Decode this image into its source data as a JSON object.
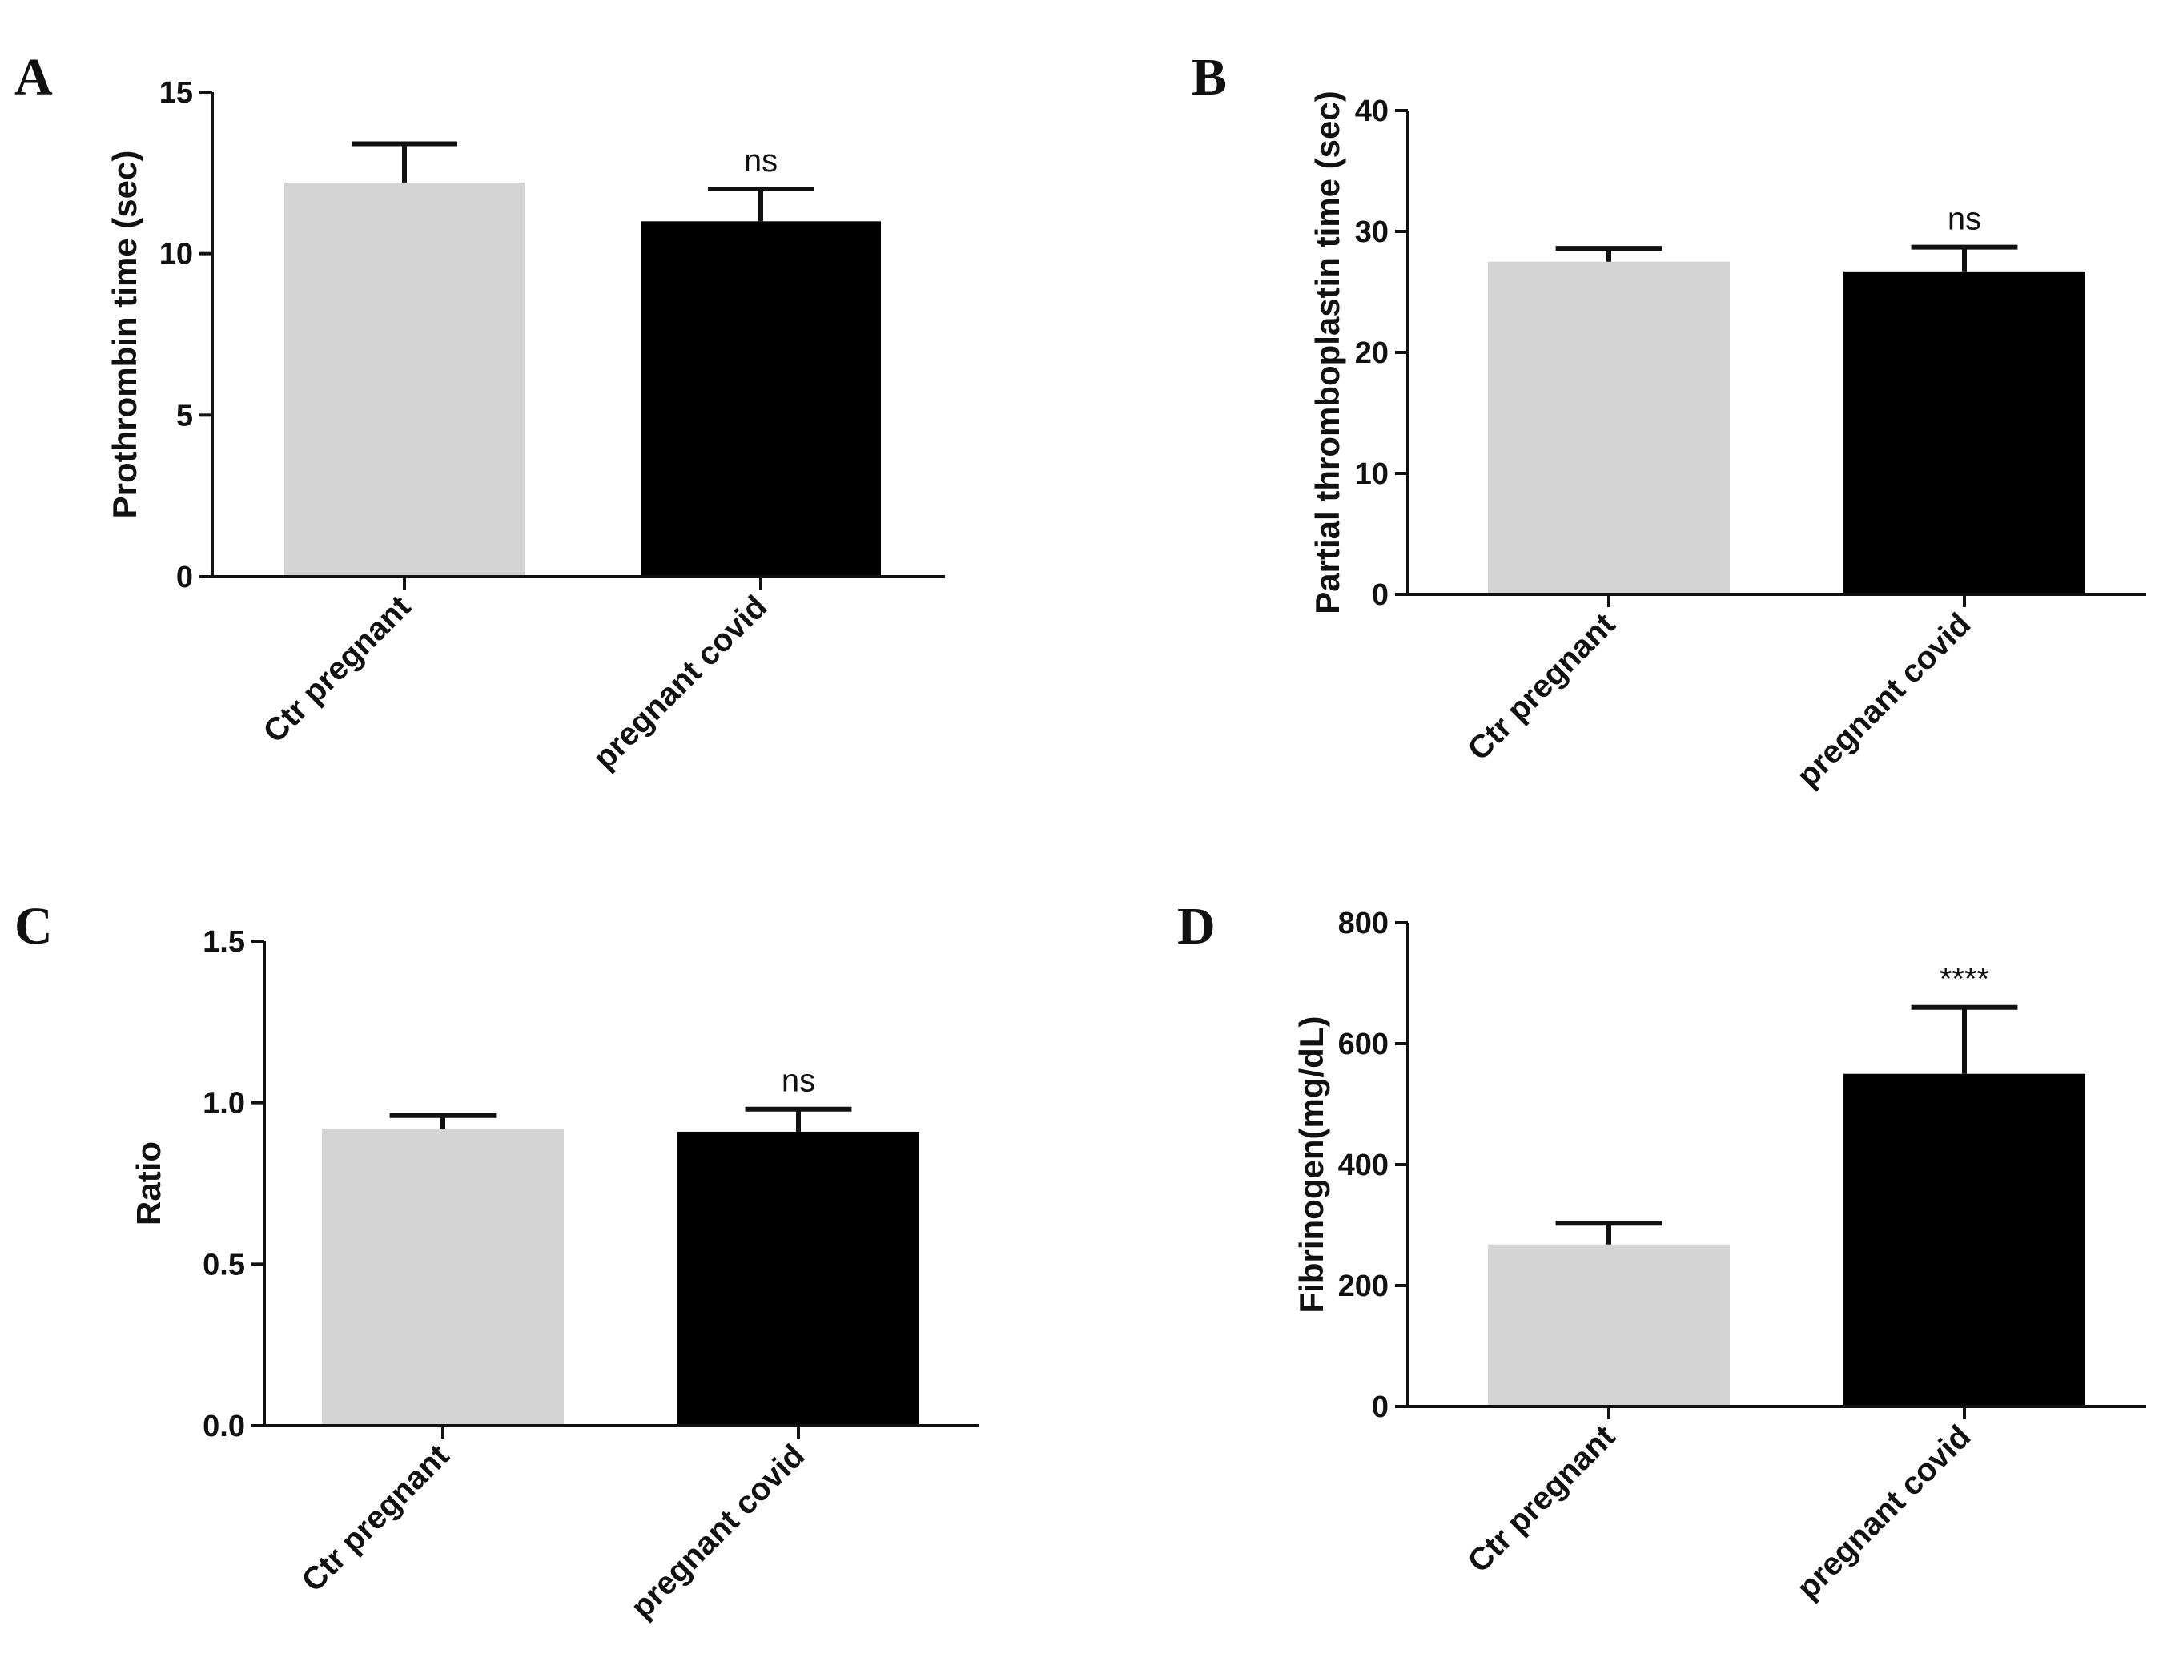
{
  "chart_data": [
    {
      "type": "bar",
      "panel": "A",
      "title": "",
      "xlabel": "",
      "ylabel": "Prothrombin time (sec)",
      "categories": [
        "Ctr pregnant",
        "pregnant covid"
      ],
      "values": [
        12.2,
        11.0
      ],
      "errors": [
        1.2,
        1.0
      ],
      "ylim": [
        0,
        15
      ],
      "yticks": [
        0,
        5,
        10,
        15
      ],
      "ytick_labels": [
        "0",
        "5",
        "10",
        "15"
      ],
      "annotations": [
        "",
        "ns"
      ],
      "colors": [
        "#d4d4d4",
        "#000000"
      ],
      "grid": false
    },
    {
      "type": "bar",
      "panel": "B",
      "title": "",
      "xlabel": "",
      "ylabel": "Partial thromboplastin time (sec)",
      "categories": [
        "Ctr pregnant",
        "pregnant covid"
      ],
      "values": [
        27.5,
        26.7
      ],
      "errors": [
        1.1,
        2.0
      ],
      "ylim": [
        0,
        40
      ],
      "yticks": [
        0,
        10,
        20,
        30,
        40
      ],
      "ytick_labels": [
        "0",
        "10",
        "20",
        "30",
        "40"
      ],
      "annotations": [
        "",
        "ns"
      ],
      "colors": [
        "#d4d4d4",
        "#000000"
      ],
      "grid": false
    },
    {
      "type": "bar",
      "panel": "C",
      "title": "",
      "xlabel": "",
      "ylabel": "Ratio",
      "categories": [
        "Ctr pregnant",
        "pregnant covid"
      ],
      "values": [
        0.92,
        0.91
      ],
      "errors": [
        0.04,
        0.07
      ],
      "ylim": [
        0,
        1.5
      ],
      "yticks": [
        0,
        0.5,
        1.0,
        1.5
      ],
      "ytick_labels": [
        "0.0",
        "0.5",
        "1.0",
        "1.5"
      ],
      "annotations": [
        "",
        "ns"
      ],
      "colors": [
        "#d4d4d4",
        "#000000"
      ],
      "grid": false
    },
    {
      "type": "bar",
      "panel": "D",
      "title": "",
      "xlabel": "",
      "ylabel": "Fibrinogen(mg/dL)",
      "categories": [
        "Ctr pregnant",
        "pregnant covid"
      ],
      "values": [
        268,
        550
      ],
      "errors": [
        35,
        110
      ],
      "ylim": [
        0,
        800
      ],
      "yticks": [
        0,
        200,
        400,
        600,
        800
      ],
      "ytick_labels": [
        "0",
        "200",
        "400",
        "600",
        "800"
      ],
      "annotations": [
        "",
        "****"
      ],
      "colors": [
        "#d4d4d4",
        "#000000"
      ],
      "grid": false
    }
  ]
}
